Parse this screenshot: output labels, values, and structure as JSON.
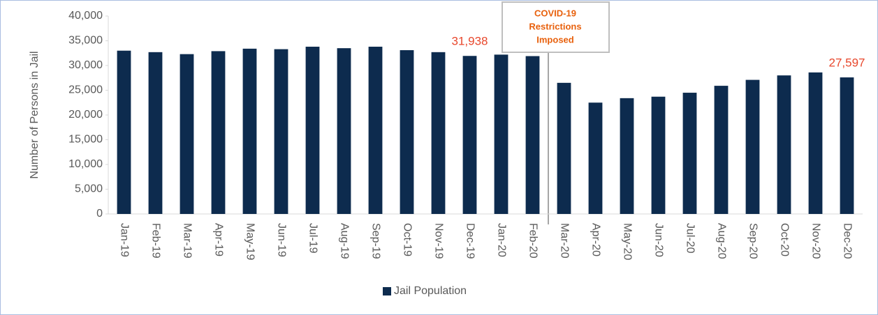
{
  "chart_data": {
    "type": "bar",
    "y_label": "Number of Persons in Jail",
    "annotation": [
      "COVID-19",
      "Restrictions",
      "Imposed"
    ],
    "categories": [
      "Jan-19",
      "Feb-19",
      "Mar-19",
      "Apr-19",
      "May-19",
      "Jun-19",
      "Jul-19",
      "Aug-19",
      "Sep-19",
      "Oct-19",
      "Nov-19",
      "Dec-19",
      "Jan-20",
      "Feb-20",
      "Mar-20",
      "Apr-20",
      "May-20",
      "Jun-20",
      "Jul-20",
      "Aug-20",
      "Sep-20",
      "Oct-20",
      "Nov-20",
      "Dec-20"
    ],
    "series": [
      {
        "name": "Jail Population",
        "color": "#0d2b4e",
        "values": [
          33000,
          32700,
          32300,
          32900,
          33400,
          33300,
          33800,
          33500,
          33800,
          33100,
          32700,
          31938,
          32200,
          31900,
          26500,
          22500,
          23400,
          23700,
          24500,
          25900,
          27100,
          28000,
          28600,
          27597
        ],
        "value_labels": [
          null,
          null,
          null,
          null,
          null,
          null,
          null,
          null,
          null,
          null,
          null,
          "31,938",
          null,
          null,
          null,
          null,
          null,
          null,
          null,
          null,
          null,
          null,
          null,
          "27,597"
        ]
      }
    ],
    "ylim": [
      0,
      40000
    ],
    "yticks": [
      0,
      {
        "value": 5000,
        "label": "5,000"
      },
      {
        "value": 10000,
        "label": "10,000"
      },
      {
        "value": 15000,
        "label": "15,000"
      },
      {
        "value": 20000,
        "label": "20,000"
      },
      {
        "value": 25000,
        "label": "25,000"
      },
      {
        "value": 30000,
        "label": "30,000"
      },
      {
        "value": 35000,
        "label": "35,000"
      },
      {
        "value": 40000,
        "label": "40,000"
      }
    ],
    "grid": false,
    "legend": "bottom"
  }
}
